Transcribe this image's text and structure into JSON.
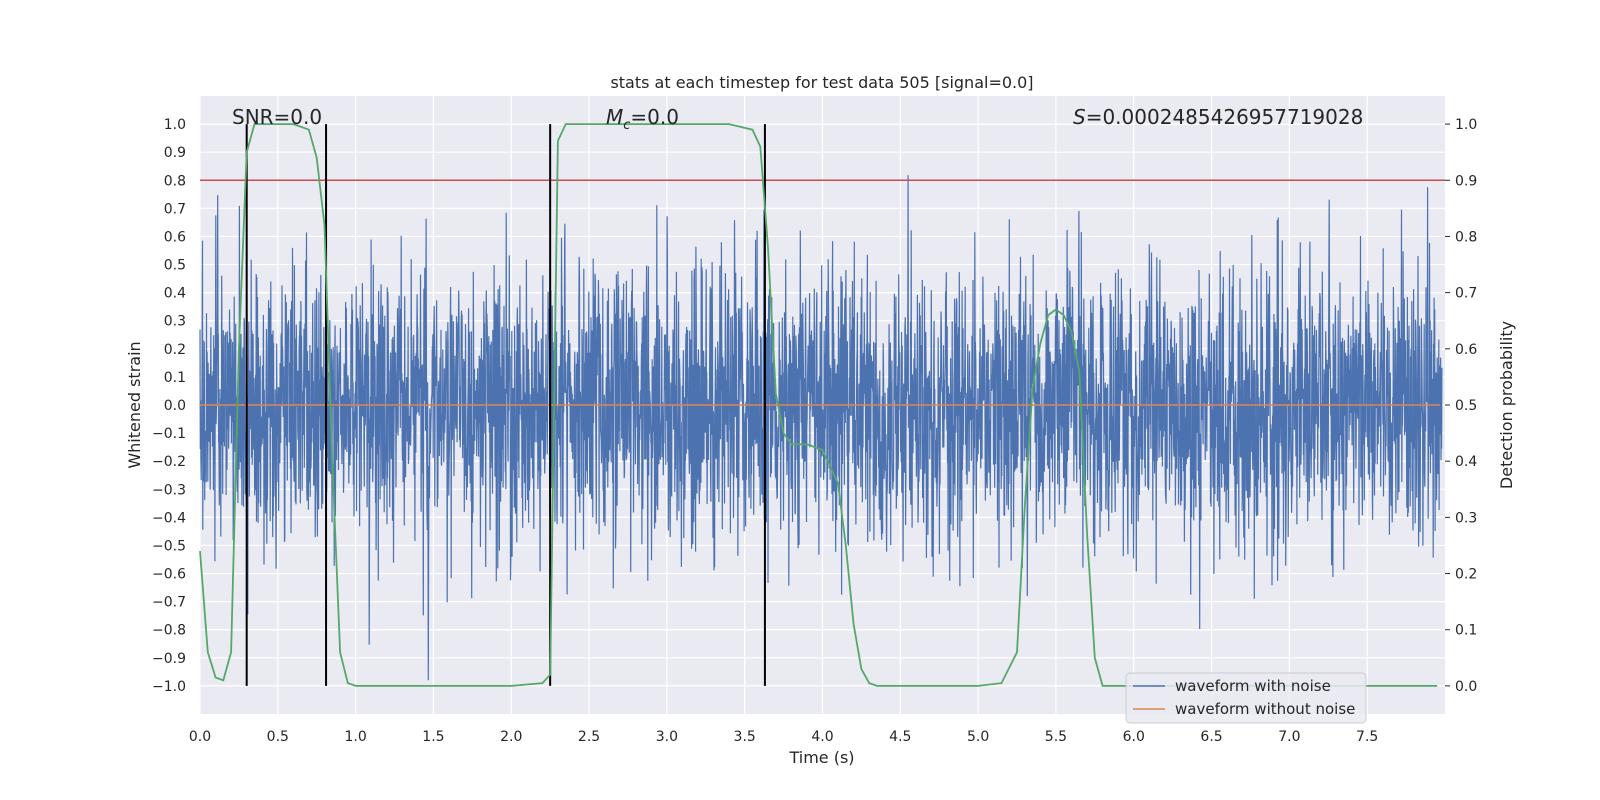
{
  "chart_data": {
    "type": "line",
    "title": "stats at each timestep for test data 505 [signal=0.0]",
    "xlabel": "Time (s)",
    "ylabel": "Whitened strain",
    "y2label": "Detection probability",
    "xlim": [
      0.0,
      8.0
    ],
    "ylim": [
      -1.1,
      1.1
    ],
    "y2lim": [
      -0.05,
      1.05
    ],
    "xticks": [
      "0.0",
      "0.5",
      "1.0",
      "1.5",
      "2.0",
      "2.5",
      "3.0",
      "3.5",
      "4.0",
      "4.5",
      "5.0",
      "5.5",
      "6.0",
      "6.5",
      "7.0",
      "7.5"
    ],
    "yticks": [
      "1.0",
      "0.9",
      "0.8",
      "0.7",
      "0.6",
      "0.5",
      "0.4",
      "0.3",
      "0.2",
      "0.1",
      "0.0",
      "-0.1",
      "-0.2",
      "-0.3",
      "-0.4",
      "-0.5",
      "-0.6",
      "-0.7",
      "-0.8",
      "-0.9",
      "-1.0"
    ],
    "y2ticks": [
      "1.0",
      "0.9",
      "0.8",
      "0.7",
      "0.6",
      "0.5",
      "0.4",
      "0.3",
      "0.2",
      "0.1",
      "0.0"
    ],
    "grid": true,
    "annotations": {
      "snr": "SNR=0.0",
      "mc": "=0.0",
      "mc_symbol": "M",
      "mc_sub": "c",
      "s": "=0.0002485426957719028",
      "s_symbol": "S"
    },
    "threshold_y2": 0.9,
    "vertical_lines_x": [
      0.3,
      0.81,
      2.25,
      3.63
    ],
    "series": [
      {
        "name": "waveform with noise",
        "color": "#4c72b0",
        "style": "dense noise, amplitude ~0.25 std, spikes to ±1.0"
      },
      {
        "name": "waveform without noise",
        "color": "#dd8452",
        "values_constant": 0.0
      }
    ],
    "detection_probability": {
      "color": "#55a868",
      "x": [
        0.0,
        0.05,
        0.1,
        0.15,
        0.2,
        0.25,
        0.3,
        0.35,
        0.4,
        0.5,
        0.6,
        0.7,
        0.75,
        0.8,
        0.85,
        0.9,
        0.95,
        1.0,
        1.1,
        1.5,
        2.0,
        2.2,
        2.25,
        2.3,
        2.35,
        2.4,
        2.6,
        3.0,
        3.4,
        3.55,
        3.6,
        3.65,
        3.7,
        3.75,
        3.8,
        3.85,
        3.9,
        4.0,
        4.1,
        4.15,
        4.2,
        4.25,
        4.3,
        4.35,
        4.5,
        5.0,
        5.15,
        5.25,
        5.3,
        5.35,
        5.4,
        5.45,
        5.5,
        5.55,
        5.6,
        5.65,
        5.7,
        5.75,
        5.8,
        5.9,
        6.0,
        6.5,
        7.0,
        7.5,
        7.95
      ],
      "y": [
        0.24,
        0.06,
        0.015,
        0.01,
        0.06,
        0.6,
        0.95,
        1.0,
        1.0,
        1.0,
        1.0,
        0.99,
        0.94,
        0.82,
        0.4,
        0.06,
        0.005,
        0.0,
        0.0,
        0.0,
        0.0,
        0.005,
        0.02,
        0.97,
        1.0,
        1.0,
        1.0,
        1.0,
        1.0,
        0.99,
        0.96,
        0.78,
        0.52,
        0.45,
        0.43,
        0.43,
        0.43,
        0.42,
        0.36,
        0.25,
        0.11,
        0.03,
        0.005,
        0.0,
        0.0,
        0.0,
        0.005,
        0.06,
        0.32,
        0.53,
        0.61,
        0.66,
        0.67,
        0.66,
        0.63,
        0.56,
        0.27,
        0.05,
        0.0,
        0.0,
        0.0,
        0.0,
        0.0,
        0.0,
        0.0
      ]
    }
  }
}
